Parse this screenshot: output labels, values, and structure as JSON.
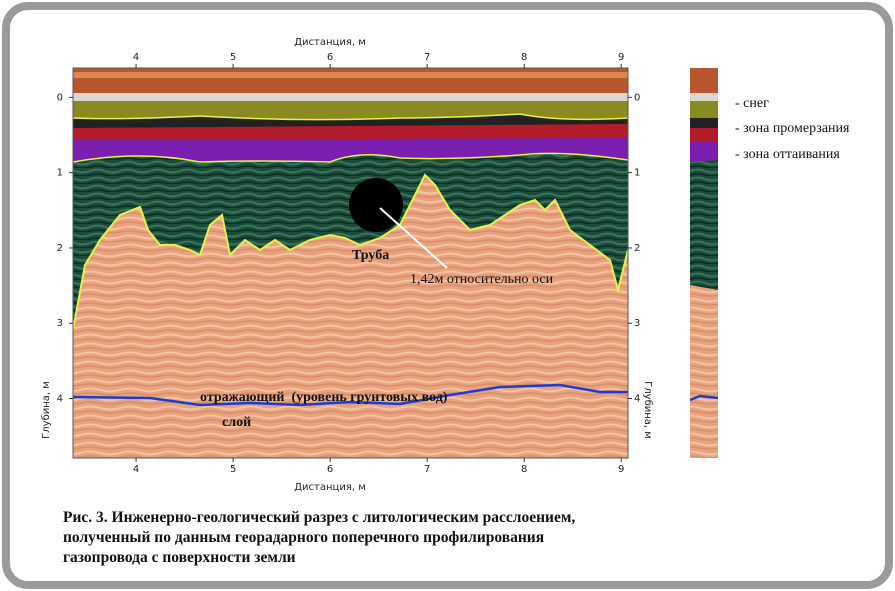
{
  "figure": {
    "x_axis_label_top": "Дистанция, м",
    "x_axis_label_bottom": "Дистанция, м",
    "y_axis_label_left": "Глубина, м",
    "y_axis_label_right": "Глубина, м",
    "xlim": [
      3.35,
      9.07
    ],
    "xticks": [
      4,
      5,
      6,
      7,
      8,
      9
    ],
    "ylim": [
      -0.39,
      4.79
    ],
    "yticks": [
      0,
      1,
      2,
      3,
      4
    ],
    "annotations": {
      "pipe": "Труба",
      "distance": "1,42м относительно оси",
      "reflector": "отражающий  (уровень грунтовых вод)",
      "layer": "слой"
    },
    "legend": [
      "- снег",
      "- зона промерзания",
      "- зона оттаивания"
    ],
    "caption": [
      "Рис. 3. Инженерно-геологический разрез с литологическим расслоением,",
      "полученный по данным георадарного поперечного профилирования",
      "газопровода с поверхности земли"
    ]
  }
}
